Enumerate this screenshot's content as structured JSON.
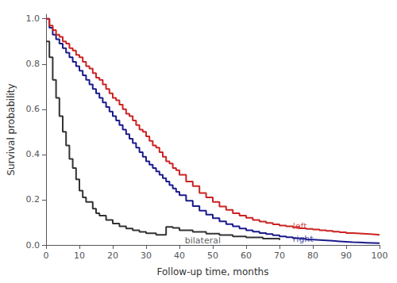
{
  "chart_data": {
    "type": "step",
    "xlabel": "Follow-up time, months",
    "ylabel": "Survival probability",
    "xlim": [
      0,
      100
    ],
    "ylim": [
      0,
      1.02
    ],
    "xticks": [
      0,
      10,
      20,
      30,
      40,
      50,
      60,
      70,
      80,
      90,
      100
    ],
    "yticks": [
      {
        "value": 0.0,
        "label": "0.0"
      },
      0.2,
      0.4,
      0.6,
      0.8,
      {
        "value": 1.0,
        "label": "1.0"
      }
    ],
    "grid": false,
    "series": [
      {
        "color": "#333333",
        "x": [
          0,
          1,
          2,
          3,
          4,
          5,
          6,
          7,
          8,
          9,
          10,
          11,
          12,
          14,
          15,
          16,
          18,
          20,
          22,
          24,
          26,
          28,
          30,
          33,
          36,
          38,
          40,
          44,
          48,
          52,
          56,
          60,
          65,
          70
        ],
        "values": [
          0.9,
          0.83,
          0.73,
          0.65,
          0.57,
          0.5,
          0.44,
          0.38,
          0.34,
          0.29,
          0.24,
          0.21,
          0.19,
          0.16,
          0.14,
          0.13,
          0.11,
          0.095,
          0.082,
          0.073,
          0.065,
          0.058,
          0.052,
          0.045,
          0.08,
          0.075,
          0.065,
          0.058,
          0.05,
          0.044,
          0.038,
          0.033,
          0.028,
          0.022
        ]
      },
      {
        "color": "#1a1a8c",
        "x": [
          0,
          1,
          2,
          3,
          4,
          5,
          6,
          7,
          8,
          9,
          10,
          11,
          12,
          13,
          14,
          15,
          16,
          17,
          18,
          19,
          20,
          21,
          22,
          23,
          24,
          25,
          26,
          27,
          28,
          29,
          30,
          31,
          32,
          33,
          34,
          35,
          36,
          37,
          38,
          39,
          40,
          42,
          44,
          46,
          48,
          50,
          52,
          54,
          56,
          58,
          60,
          62,
          64,
          66,
          68,
          70,
          72,
          74,
          76,
          78,
          80,
          82,
          84,
          86,
          88,
          90,
          92,
          94,
          96,
          98,
          100
        ],
        "values": [
          1.0,
          0.96,
          0.93,
          0.91,
          0.89,
          0.87,
          0.85,
          0.83,
          0.81,
          0.79,
          0.77,
          0.75,
          0.73,
          0.71,
          0.69,
          0.67,
          0.65,
          0.63,
          0.61,
          0.59,
          0.57,
          0.55,
          0.53,
          0.51,
          0.49,
          0.47,
          0.45,
          0.43,
          0.41,
          0.39,
          0.37,
          0.355,
          0.34,
          0.325,
          0.31,
          0.295,
          0.28,
          0.265,
          0.25,
          0.235,
          0.22,
          0.195,
          0.172,
          0.152,
          0.134,
          0.118,
          0.104,
          0.092,
          0.082,
          0.073,
          0.065,
          0.059,
          0.053,
          0.048,
          0.043,
          0.038,
          0.034,
          0.03,
          0.027,
          0.024,
          0.022,
          0.02,
          0.018,
          0.016,
          0.014,
          0.012,
          0.011,
          0.01,
          0.009,
          0.008,
          0.007
        ]
      },
      {
        "color": "#cc2222",
        "x": [
          0,
          1,
          2,
          3,
          4,
          5,
          6,
          7,
          8,
          9,
          10,
          11,
          12,
          13,
          14,
          15,
          16,
          17,
          18,
          19,
          20,
          21,
          22,
          23,
          24,
          25,
          26,
          27,
          28,
          29,
          30,
          31,
          32,
          33,
          34,
          35,
          36,
          37,
          38,
          39,
          40,
          42,
          44,
          46,
          48,
          50,
          52,
          54,
          56,
          58,
          60,
          62,
          64,
          66,
          68,
          70,
          72,
          74,
          76,
          78,
          80,
          82,
          84,
          86,
          88,
          90,
          92,
          94,
          96,
          98,
          100
        ],
        "values": [
          1.0,
          0.97,
          0.95,
          0.93,
          0.92,
          0.9,
          0.89,
          0.87,
          0.86,
          0.84,
          0.83,
          0.81,
          0.79,
          0.78,
          0.76,
          0.74,
          0.73,
          0.71,
          0.69,
          0.67,
          0.65,
          0.64,
          0.62,
          0.6,
          0.58,
          0.57,
          0.55,
          0.53,
          0.51,
          0.5,
          0.48,
          0.46,
          0.44,
          0.43,
          0.41,
          0.39,
          0.37,
          0.36,
          0.34,
          0.33,
          0.31,
          0.28,
          0.26,
          0.23,
          0.21,
          0.19,
          0.17,
          0.155,
          0.14,
          0.13,
          0.12,
          0.11,
          0.103,
          0.097,
          0.091,
          0.086,
          0.082,
          0.078,
          0.074,
          0.071,
          0.068,
          0.065,
          0.062,
          0.059,
          0.056,
          0.053,
          0.051,
          0.049,
          0.047,
          0.045,
          0.043
        ]
      }
    ],
    "annotations": [
      {
        "text": "left",
        "x": 74,
        "y": 0.083,
        "color": "#cc2222"
      },
      {
        "text": "right",
        "x": 74,
        "y": 0.027,
        "color": "#1a1a8c"
      },
      {
        "text": "bilateral",
        "x": 47,
        "y": 0.02,
        "color": "#333333",
        "align": "center"
      }
    ]
  }
}
